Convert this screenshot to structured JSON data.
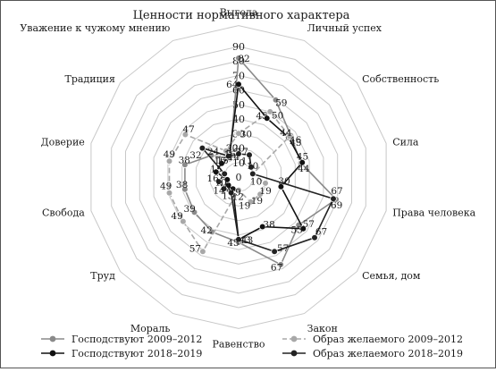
{
  "chart_data": {
    "type": "radar",
    "title": "Ценности нормативного характера",
    "categories": [
      "Выгода",
      "Личный успех",
      "Собственность",
      "Сила",
      "Права человека",
      "Семья, дом",
      "Закон",
      "Равенство",
      "Мораль",
      "Труд",
      "Свобода",
      "Доверие",
      "Традиция",
      "Уважение к чужому мнению"
    ],
    "radial_ticks": [
      0,
      10,
      20,
      30,
      40,
      50,
      60,
      70,
      80,
      90
    ],
    "rlim": [
      0,
      90
    ],
    "series": [
      {
        "name": "Господствуют 2009–2012",
        "color": "#8a8a8a",
        "line": "solid",
        "marker": "circle",
        "values": [
          82,
          59,
          46,
          44,
          69,
          53,
          67,
          45,
          42,
          39,
          38,
          38,
          24,
          14
        ]
      },
      {
        "name": "Господствуют 2018–2019",
        "color": "#111111",
        "line": "solid",
        "marker": "circle",
        "values": [
          64,
          45,
          44,
          45,
          30,
          57,
          38,
          43,
          9,
          9,
          8,
          16,
          15,
          15
        ]
      },
      {
        "name": "Образ желаемого 2009–2012",
        "color": "#a8a8a8",
        "line": "dashed",
        "marker": "circle",
        "values": [
          30,
          50,
          45,
          10,
          19,
          19,
          19,
          9,
          57,
          49,
          49,
          49,
          47,
          20
        ]
      },
      {
        "name": "Образ желаемого 2018–2019",
        "color": "#222222",
        "line": "solid",
        "marker": "circle",
        "values": [
          16,
          17,
          11,
          10,
          67,
          67,
          57,
          43,
          12,
          13,
          14,
          10,
          32,
          16
        ]
      }
    ],
    "legend_position": "bottom",
    "grid": true
  },
  "legend": {
    "items": [
      {
        "label": "Господствуют 2009–2012",
        "color": "#8a8a8a",
        "dashed": false
      },
      {
        "label": "Образ желаемого 2009–2012",
        "color": "#a8a8a8",
        "dashed": true
      },
      {
        "label": "Господствуют 2018–2019",
        "color": "#111111",
        "dashed": false
      },
      {
        "label": "Образ желаемого 2018–2019",
        "color": "#222222",
        "dashed": false
      }
    ]
  }
}
